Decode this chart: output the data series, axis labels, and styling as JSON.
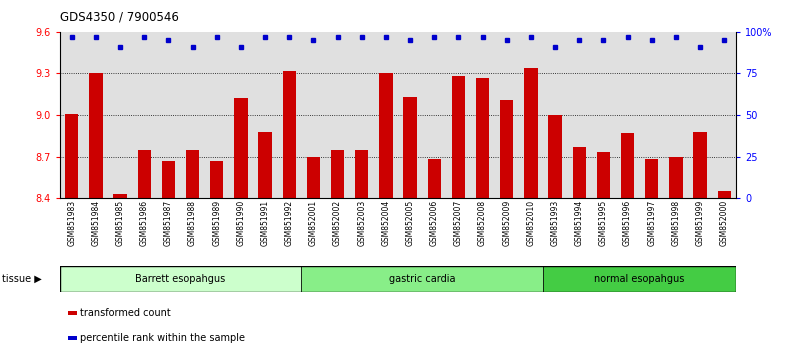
{
  "title": "GDS4350 / 7900546",
  "samples": [
    "GSM851983",
    "GSM851984",
    "GSM851985",
    "GSM851986",
    "GSM851987",
    "GSM851988",
    "GSM851989",
    "GSM851990",
    "GSM851991",
    "GSM851992",
    "GSM852001",
    "GSM852002",
    "GSM852003",
    "GSM852004",
    "GSM852005",
    "GSM852006",
    "GSM852007",
    "GSM852008",
    "GSM852009",
    "GSM852010",
    "GSM851993",
    "GSM851994",
    "GSM851995",
    "GSM851996",
    "GSM851997",
    "GSM851998",
    "GSM851999",
    "GSM852000"
  ],
  "bar_values": [
    9.01,
    9.3,
    8.43,
    8.75,
    8.67,
    8.75,
    8.67,
    9.12,
    8.88,
    9.32,
    8.7,
    8.75,
    8.75,
    9.3,
    9.13,
    8.68,
    9.28,
    9.27,
    9.11,
    9.34,
    9.0,
    8.77,
    8.73,
    8.87,
    8.68,
    8.7,
    8.88,
    8.45
  ],
  "percentile_values": [
    97,
    97,
    91,
    97,
    95,
    91,
    97,
    91,
    97,
    97,
    95,
    97,
    97,
    97,
    95,
    97,
    97,
    97,
    95,
    97,
    91,
    95,
    95,
    97,
    95,
    97,
    91,
    95
  ],
  "groups": [
    {
      "label": "Barrett esopahgus",
      "start": 0,
      "end": 10
    },
    {
      "label": "gastric cardia",
      "start": 10,
      "end": 20
    },
    {
      "label": "normal esopahgus",
      "start": 20,
      "end": 28
    }
  ],
  "group_colors": [
    "#ccffcc",
    "#88ee88",
    "#44cc44"
  ],
  "bar_color": "#cc0000",
  "dot_color": "#0000cc",
  "ymin": 8.4,
  "ymax": 9.6,
  "ylim_right": [
    0,
    100
  ],
  "yticks_left": [
    8.4,
    8.7,
    9.0,
    9.3,
    9.6
  ],
  "yticks_right": [
    0,
    25,
    50,
    75,
    100
  ],
  "ytick_labels_right": [
    "0",
    "25",
    "50",
    "75",
    "100%"
  ],
  "grid_values": [
    8.7,
    9.0,
    9.3
  ],
  "legend_items": [
    {
      "color": "#cc0000",
      "label": "transformed count"
    },
    {
      "color": "#0000cc",
      "label": "percentile rank within the sample"
    }
  ],
  "plot_bg_color": "#e0e0e0"
}
